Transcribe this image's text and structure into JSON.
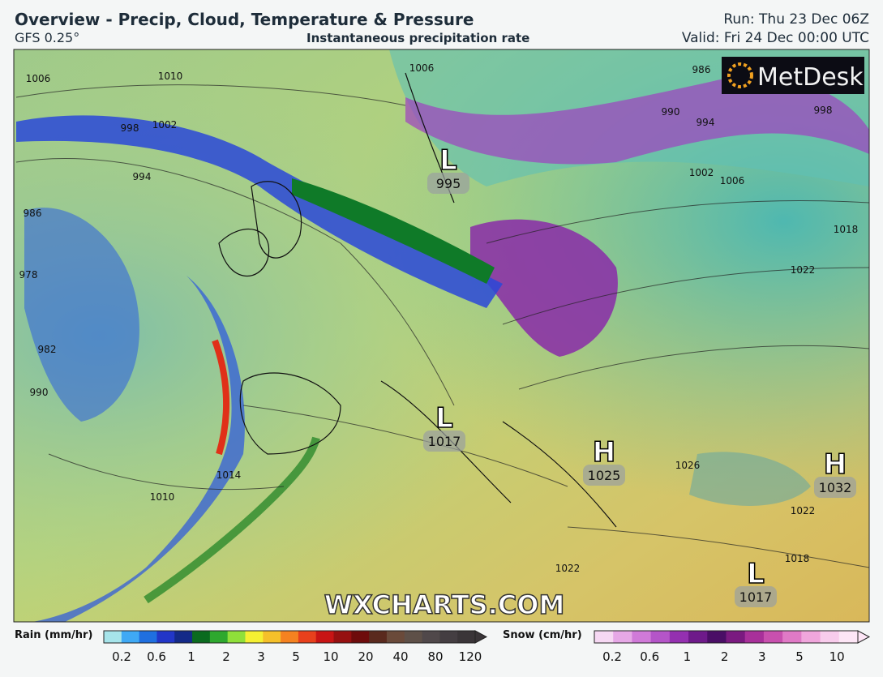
{
  "header": {
    "title": "Overview - Precip, Cloud, Temperature & Pressure",
    "model": "GFS 0.25°",
    "subtitle": "Instantaneous precipitation rate",
    "run": "Run: Thu 23 Dec 06Z",
    "valid": "Valid: Fri 24 Dec 00:00 UTC"
  },
  "logo": "MetDesk",
  "watermark": "WXCHARTS.COM",
  "pressure_centers": [
    {
      "kind": "L",
      "value": "995"
    },
    {
      "kind": "L",
      "value": "1017"
    },
    {
      "kind": "H",
      "value": "1025"
    },
    {
      "kind": "H",
      "value": "1032"
    },
    {
      "kind": "L",
      "value": "1017"
    }
  ],
  "isobar_labels": [
    "1006",
    "1010",
    "1002",
    "998",
    "994",
    "986",
    "978",
    "982",
    "990",
    "1010",
    "1014",
    "1006",
    "986",
    "990",
    "994",
    "998",
    "1002",
    "1006",
    "1018",
    "1022",
    "1026",
    "1022",
    "1018",
    "1022"
  ],
  "legend": {
    "rain": {
      "title": "Rain (mm/hr)",
      "labels": [
        "0.2",
        "0.6",
        "1",
        "2",
        "3",
        "5",
        "10",
        "20",
        "40",
        "80",
        "120"
      ],
      "colors": [
        "#a6e4ea",
        "#3fa9f5",
        "#1f6fe0",
        "#2236c8",
        "#142a88",
        "#0b6b1f",
        "#2ea82e",
        "#8fe03a",
        "#f5f032",
        "#f5c02a",
        "#f58220",
        "#e8401c",
        "#c81414",
        "#961010",
        "#6e0c0c",
        "#5a2a1e",
        "#6a4a3a",
        "#5e5048",
        "#50484a",
        "#443e42",
        "#3a3538"
      ]
    },
    "snow": {
      "title": "Snow (cm/hr)",
      "labels": [
        "0.2",
        "0.6",
        "1",
        "2",
        "3",
        "5",
        "10"
      ],
      "colors": [
        "#f6d8f3",
        "#e6a8e6",
        "#d07ad8",
        "#b455c8",
        "#9430b0",
        "#6e1a8a",
        "#4a0e66",
        "#7a1a80",
        "#a8309a",
        "#c850ae",
        "#e07ac6",
        "#f0a6dc",
        "#f8ccec",
        "#fde6f6"
      ]
    }
  }
}
